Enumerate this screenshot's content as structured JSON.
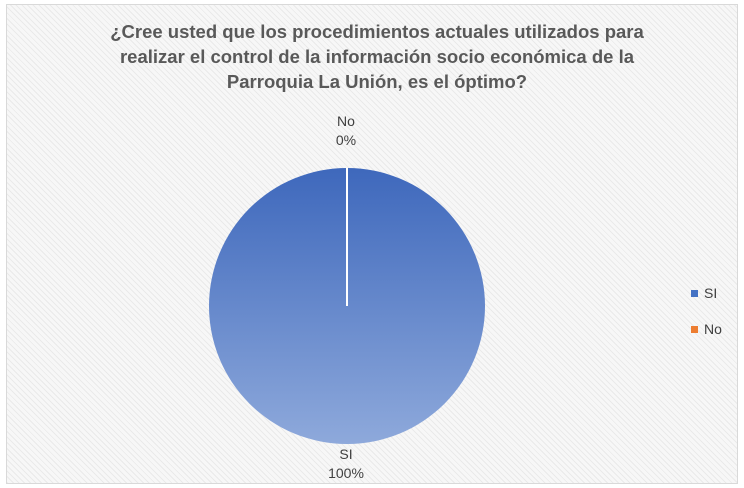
{
  "chart_data": {
    "type": "pie",
    "title": "¿Cree usted que los procedimientos actuales utilizados para realizar el control de la información socio económica de la Parroquia La Unión, es el óptimo?",
    "title_lines": [
      "¿Cree usted que los procedimientos actuales utilizados para",
      "realizar el control de la información socio económica de la",
      "Parroquia La Unión, es el óptimo?"
    ],
    "categories": [
      "SI",
      "No"
    ],
    "values": [
      100,
      0
    ],
    "percent_labels": [
      "100%",
      "0%"
    ],
    "colors": [
      "#4472C4",
      "#ED7D31"
    ],
    "legend_position": "right"
  }
}
